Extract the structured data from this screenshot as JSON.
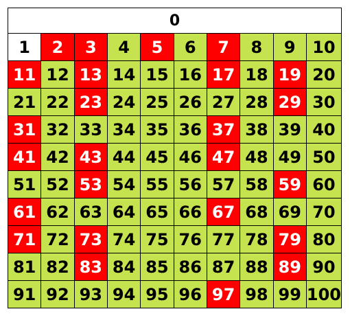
{
  "header": {
    "label": "0"
  },
  "board": {
    "colors": {
      "prime": "#ff0000",
      "composite": "#c5e24f",
      "unit": "#ffffff"
    },
    "cells": [
      {
        "n": "1",
        "type": "unit"
      },
      {
        "n": "2",
        "type": "prime"
      },
      {
        "n": "3",
        "type": "prime"
      },
      {
        "n": "4",
        "type": "composite"
      },
      {
        "n": "5",
        "type": "prime"
      },
      {
        "n": "6",
        "type": "composite"
      },
      {
        "n": "7",
        "type": "prime"
      },
      {
        "n": "8",
        "type": "composite"
      },
      {
        "n": "9",
        "type": "composite"
      },
      {
        "n": "10",
        "type": "composite"
      },
      {
        "n": "11",
        "type": "prime"
      },
      {
        "n": "12",
        "type": "composite"
      },
      {
        "n": "13",
        "type": "prime"
      },
      {
        "n": "14",
        "type": "composite"
      },
      {
        "n": "15",
        "type": "composite"
      },
      {
        "n": "16",
        "type": "composite"
      },
      {
        "n": "17",
        "type": "prime"
      },
      {
        "n": "18",
        "type": "composite"
      },
      {
        "n": "19",
        "type": "prime"
      },
      {
        "n": "20",
        "type": "composite"
      },
      {
        "n": "21",
        "type": "composite"
      },
      {
        "n": "22",
        "type": "composite"
      },
      {
        "n": "23",
        "type": "prime"
      },
      {
        "n": "24",
        "type": "composite"
      },
      {
        "n": "25",
        "type": "composite"
      },
      {
        "n": "26",
        "type": "composite"
      },
      {
        "n": "27",
        "type": "composite"
      },
      {
        "n": "28",
        "type": "composite"
      },
      {
        "n": "29",
        "type": "prime"
      },
      {
        "n": "30",
        "type": "composite"
      },
      {
        "n": "31",
        "type": "prime"
      },
      {
        "n": "32",
        "type": "composite"
      },
      {
        "n": "33",
        "type": "composite"
      },
      {
        "n": "34",
        "type": "composite"
      },
      {
        "n": "35",
        "type": "composite"
      },
      {
        "n": "36",
        "type": "composite"
      },
      {
        "n": "37",
        "type": "prime"
      },
      {
        "n": "38",
        "type": "composite"
      },
      {
        "n": "39",
        "type": "composite"
      },
      {
        "n": "40",
        "type": "composite"
      },
      {
        "n": "41",
        "type": "prime"
      },
      {
        "n": "42",
        "type": "composite"
      },
      {
        "n": "43",
        "type": "prime"
      },
      {
        "n": "44",
        "type": "composite"
      },
      {
        "n": "45",
        "type": "composite"
      },
      {
        "n": "46",
        "type": "composite"
      },
      {
        "n": "47",
        "type": "prime"
      },
      {
        "n": "48",
        "type": "composite"
      },
      {
        "n": "49",
        "type": "composite"
      },
      {
        "n": "50",
        "type": "composite"
      },
      {
        "n": "51",
        "type": "composite"
      },
      {
        "n": "52",
        "type": "composite"
      },
      {
        "n": "53",
        "type": "prime"
      },
      {
        "n": "54",
        "type": "composite"
      },
      {
        "n": "55",
        "type": "composite"
      },
      {
        "n": "56",
        "type": "composite"
      },
      {
        "n": "57",
        "type": "composite"
      },
      {
        "n": "58",
        "type": "composite"
      },
      {
        "n": "59",
        "type": "prime"
      },
      {
        "n": "60",
        "type": "composite"
      },
      {
        "n": "61",
        "type": "prime"
      },
      {
        "n": "62",
        "type": "composite"
      },
      {
        "n": "63",
        "type": "composite"
      },
      {
        "n": "64",
        "type": "composite"
      },
      {
        "n": "65",
        "type": "composite"
      },
      {
        "n": "66",
        "type": "composite"
      },
      {
        "n": "67",
        "type": "prime"
      },
      {
        "n": "68",
        "type": "composite"
      },
      {
        "n": "69",
        "type": "composite"
      },
      {
        "n": "70",
        "type": "composite"
      },
      {
        "n": "71",
        "type": "prime"
      },
      {
        "n": "72",
        "type": "composite"
      },
      {
        "n": "73",
        "type": "prime"
      },
      {
        "n": "74",
        "type": "composite"
      },
      {
        "n": "75",
        "type": "composite"
      },
      {
        "n": "76",
        "type": "composite"
      },
      {
        "n": "77",
        "type": "composite"
      },
      {
        "n": "78",
        "type": "composite"
      },
      {
        "n": "79",
        "type": "prime"
      },
      {
        "n": "80",
        "type": "composite"
      },
      {
        "n": "81",
        "type": "composite"
      },
      {
        "n": "82",
        "type": "composite"
      },
      {
        "n": "83",
        "type": "prime"
      },
      {
        "n": "84",
        "type": "composite"
      },
      {
        "n": "85",
        "type": "composite"
      },
      {
        "n": "86",
        "type": "composite"
      },
      {
        "n": "87",
        "type": "composite"
      },
      {
        "n": "88",
        "type": "composite"
      },
      {
        "n": "89",
        "type": "prime"
      },
      {
        "n": "90",
        "type": "composite"
      },
      {
        "n": "91",
        "type": "composite"
      },
      {
        "n": "92",
        "type": "composite"
      },
      {
        "n": "93",
        "type": "composite"
      },
      {
        "n": "94",
        "type": "composite"
      },
      {
        "n": "95",
        "type": "composite"
      },
      {
        "n": "96",
        "type": "composite"
      },
      {
        "n": "97",
        "type": "prime"
      },
      {
        "n": "98",
        "type": "composite"
      },
      {
        "n": "99",
        "type": "composite"
      },
      {
        "n": "100",
        "type": "composite"
      }
    ]
  }
}
